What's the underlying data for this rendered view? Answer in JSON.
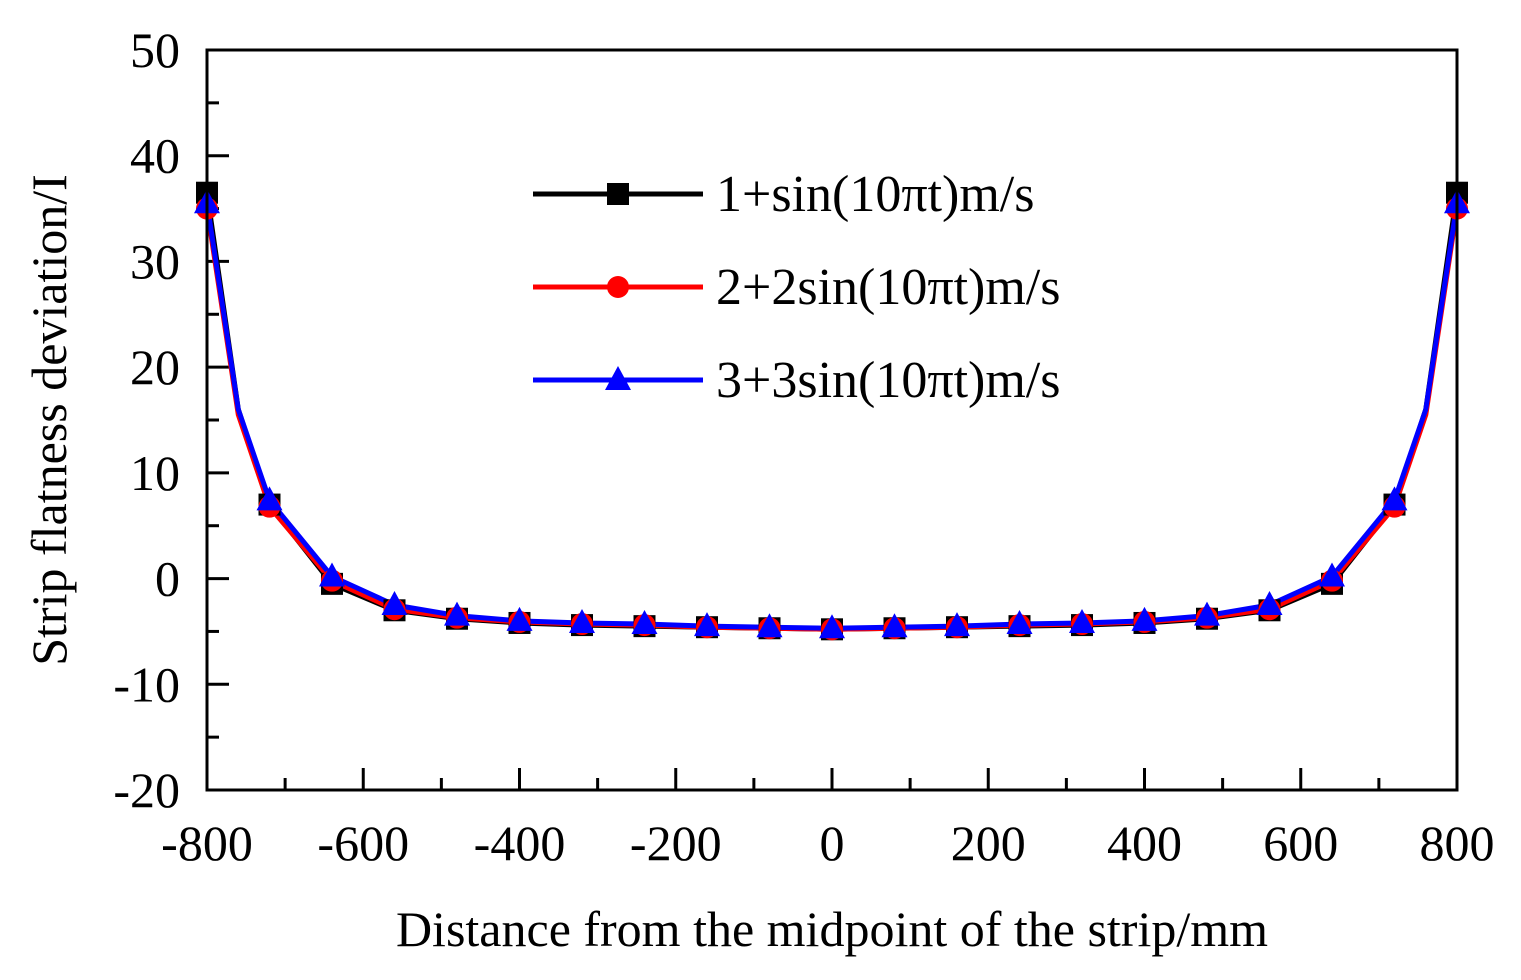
{
  "chart_data": {
    "type": "line",
    "title": "",
    "xlabel": "Distance from the midpoint of the strip/mm",
    "ylabel": "Strip flatness deviation/I",
    "xlim": [
      -800,
      800
    ],
    "ylim": [
      -20,
      50
    ],
    "x_major_ticks": [
      -800,
      -600,
      -400,
      -200,
      0,
      200,
      400,
      600,
      800
    ],
    "x_tick_labels": [
      "-800",
      "-600",
      "-400",
      "-200",
      "0",
      "200",
      "400",
      "600",
      "800"
    ],
    "x_minor_ticks": [
      -700,
      -500,
      -300,
      -100,
      100,
      300,
      500,
      700
    ],
    "y_major_ticks": [
      -20,
      -10,
      0,
      10,
      20,
      30,
      40,
      50
    ],
    "y_tick_labels": [
      "-20",
      "-10",
      "0",
      "10",
      "20",
      "30",
      "40",
      "50"
    ],
    "y_minor_ticks": [
      -15,
      -5,
      5,
      15,
      25,
      35,
      45
    ],
    "grid": false,
    "legend_position": "top-center",
    "x": [
      -800,
      -760,
      -720,
      -640,
      -560,
      -480,
      -400,
      -320,
      -240,
      -160,
      -80,
      0,
      80,
      160,
      240,
      320,
      400,
      480,
      560,
      640,
      720,
      760,
      800
    ],
    "marker_x": [
      -800,
      -720,
      -640,
      -560,
      -480,
      -400,
      -320,
      -240,
      -160,
      -80,
      0,
      80,
      160,
      240,
      320,
      400,
      480,
      560,
      640,
      720,
      800
    ],
    "series": [
      {
        "name": "1+sin(10πt)m/s",
        "color": "#000000",
        "marker": "square",
        "values": [
          36.5,
          16,
          7.0,
          -0.5,
          -3.0,
          -3.8,
          -4.2,
          -4.4,
          -4.5,
          -4.6,
          -4.7,
          -4.8,
          -4.7,
          -4.6,
          -4.5,
          -4.4,
          -4.2,
          -3.8,
          -3.0,
          -0.5,
          7.0,
          16,
          36.5
        ]
      },
      {
        "name": "2+2sin(10πt)m/s",
        "color": "#ff0000",
        "marker": "circle",
        "values": [
          35.0,
          15.5,
          6.8,
          -0.2,
          -2.9,
          -3.7,
          -4.1,
          -4.3,
          -4.4,
          -4.6,
          -4.7,
          -4.8,
          -4.7,
          -4.6,
          -4.4,
          -4.3,
          -4.1,
          -3.7,
          -2.9,
          -0.2,
          6.8,
          15.5,
          35.0
        ]
      },
      {
        "name": "3+3sin(10πt)m/s",
        "color": "#0000ff",
        "marker": "triangle",
        "values": [
          35.5,
          16,
          7.4,
          0.2,
          -2.5,
          -3.5,
          -4.0,
          -4.2,
          -4.3,
          -4.5,
          -4.6,
          -4.7,
          -4.6,
          -4.5,
          -4.3,
          -4.2,
          -4.0,
          -3.5,
          -2.5,
          0.2,
          7.4,
          16,
          35.5
        ]
      }
    ]
  }
}
